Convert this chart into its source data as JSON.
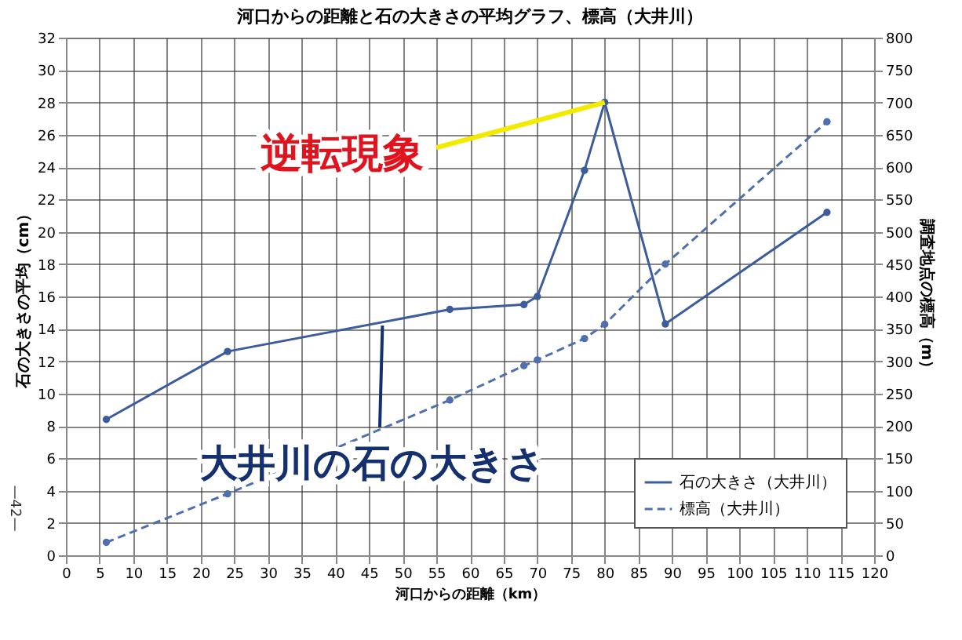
{
  "chart_data": {
    "type": "line",
    "title": "河口からの距離と石の大きさの平均グラフ、標高（大井川）",
    "xlabel": "河口からの距離（km）",
    "ylabel": "石の大きさの平均（cm）",
    "y2label": "調査地点の標高（m）",
    "x": [
      6,
      24,
      57,
      68,
      70,
      77,
      80,
      89,
      113
    ],
    "series": [
      {
        "name": "石の大きさ（大井川）",
        "color": "#3d5c9c",
        "line_style": "solid",
        "values": [
          8.4,
          12.6,
          15.2,
          15.5,
          16.0,
          23.8,
          28.0,
          14.3,
          21.2
        ]
      },
      {
        "name": "標高（大井川）",
        "color": "#4f6fae",
        "line_style": "dashed",
        "axis": "y2",
        "values": [
          20,
          95,
          240,
          293,
          302,
          335,
          357,
          450,
          670
        ]
      }
    ],
    "xlim": [
      0,
      120
    ],
    "xticks": [
      0,
      5,
      10,
      15,
      20,
      25,
      30,
      35,
      40,
      45,
      50,
      55,
      60,
      65,
      70,
      75,
      80,
      85,
      90,
      95,
      100,
      105,
      110,
      115,
      120
    ],
    "ylim": [
      0,
      32
    ],
    "yticks": [
      0,
      2,
      4,
      6,
      8,
      10,
      12,
      14,
      16,
      18,
      20,
      22,
      24,
      26,
      28,
      30,
      32
    ],
    "y2lim": [
      0,
      800
    ],
    "y2ticks": [
      0,
      50,
      100,
      150,
      200,
      250,
      300,
      350,
      400,
      450,
      500,
      550,
      600,
      650,
      700,
      750,
      800
    ],
    "annotations": [
      {
        "text": "逆転現象",
        "x": 80,
        "y": 28.0
      },
      {
        "text": "大井川の石の大きさ",
        "x": 47,
        "y": 14.2
      },
      "—42—"
    ],
    "grid": true,
    "legend": "bottom right",
    "marker": "circle"
  }
}
